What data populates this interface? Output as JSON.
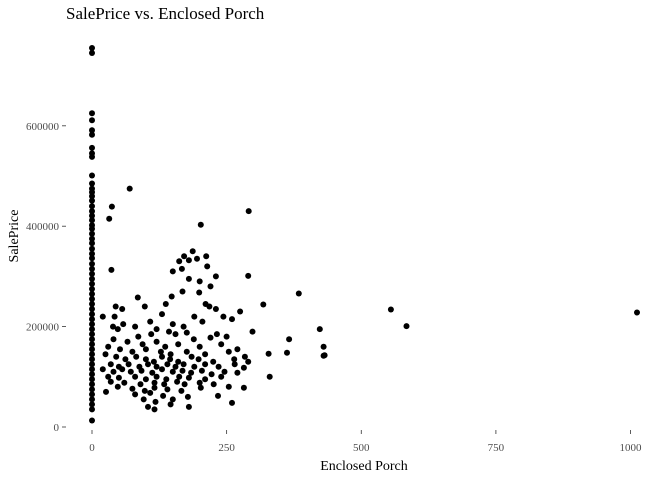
{
  "chart_data": {
    "type": "scatter",
    "title": "SalePrice vs. Enclosed Porch",
    "xlabel": "Enclosed Porch",
    "ylabel": "SalePrice",
    "xlim": [
      0,
      1012
    ],
    "ylim": [
      0,
      755000
    ],
    "x_ticks": [
      {
        "value": 0,
        "label": "0"
      },
      {
        "value": 250,
        "label": "250"
      },
      {
        "value": 500,
        "label": "500"
      },
      {
        "value": 750,
        "label": "750"
      },
      {
        "value": 1000,
        "label": "1000"
      }
    ],
    "y_ticks": [
      {
        "value": 0,
        "label": "0"
      },
      {
        "value": 200000,
        "label": "200000"
      },
      {
        "value": 400000,
        "label": "400000"
      },
      {
        "value": 600000,
        "label": "600000"
      }
    ],
    "grid": false,
    "point_color": "#000000",
    "points": [
      [
        0,
        755000
      ],
      [
        0,
        745000
      ],
      [
        0,
        625000
      ],
      [
        0,
        611000
      ],
      [
        0,
        591000
      ],
      [
        0,
        582000
      ],
      [
        0,
        556000
      ],
      [
        0,
        545000
      ],
      [
        0,
        538000
      ],
      [
        0,
        501000
      ],
      [
        0,
        485000
      ],
      [
        0,
        475000
      ],
      [
        0,
        468000
      ],
      [
        0,
        460000
      ],
      [
        0,
        451000
      ],
      [
        0,
        440000
      ],
      [
        0,
        430000
      ],
      [
        0,
        421000
      ],
      [
        0,
        412000
      ],
      [
        0,
        402000
      ],
      [
        0,
        395000
      ],
      [
        0,
        385000
      ],
      [
        0,
        375000
      ],
      [
        0,
        366000
      ],
      [
        0,
        355000
      ],
      [
        0,
        345000
      ],
      [
        0,
        336000
      ],
      [
        0,
        325000
      ],
      [
        0,
        315000
      ],
      [
        0,
        305000
      ],
      [
        0,
        295000
      ],
      [
        0,
        285000
      ],
      [
        0,
        275000
      ],
      [
        0,
        265000
      ],
      [
        0,
        255000
      ],
      [
        0,
        245000
      ],
      [
        0,
        235000
      ],
      [
        0,
        225000
      ],
      [
        0,
        215000
      ],
      [
        0,
        205000
      ],
      [
        0,
        195000
      ],
      [
        0,
        185000
      ],
      [
        0,
        175000
      ],
      [
        0,
        165000
      ],
      [
        0,
        155000
      ],
      [
        0,
        145000
      ],
      [
        0,
        135000
      ],
      [
        0,
        125000
      ],
      [
        0,
        115000
      ],
      [
        0,
        105000
      ],
      [
        0,
        95000
      ],
      [
        0,
        85000
      ],
      [
        0,
        75000
      ],
      [
        0,
        65000
      ],
      [
        0,
        55000
      ],
      [
        0,
        45000
      ],
      [
        0,
        35000
      ],
      [
        0,
        13000
      ],
      [
        70,
        475000
      ],
      [
        37,
        439000
      ],
      [
        32,
        415000
      ],
      [
        36,
        313000
      ],
      [
        202,
        403000
      ],
      [
        291,
        430000
      ],
      [
        187,
        350000
      ],
      [
        171,
        340000
      ],
      [
        212,
        340000
      ],
      [
        195,
        335000
      ],
      [
        162,
        330000
      ],
      [
        180,
        332000
      ],
      [
        214,
        320000
      ],
      [
        150,
        310000
      ],
      [
        167,
        315000
      ],
      [
        290,
        301000
      ],
      [
        230,
        300000
      ],
      [
        180,
        295000
      ],
      [
        200,
        290000
      ],
      [
        220,
        280000
      ],
      [
        168,
        270000
      ],
      [
        199,
        268000
      ],
      [
        384,
        266000
      ],
      [
        85,
        258000
      ],
      [
        148,
        260000
      ],
      [
        137,
        245000
      ],
      [
        211,
        245000
      ],
      [
        318,
        244000
      ],
      [
        44,
        240000
      ],
      [
        56,
        235000
      ],
      [
        98,
        240000
      ],
      [
        218,
        240000
      ],
      [
        230,
        235000
      ],
      [
        555,
        234000
      ],
      [
        275,
        230000
      ],
      [
        1012,
        228000
      ],
      [
        20,
        220000
      ],
      [
        42,
        220000
      ],
      [
        130,
        225000
      ],
      [
        190,
        220000
      ],
      [
        244,
        220000
      ],
      [
        260,
        215000
      ],
      [
        108,
        210000
      ],
      [
        58,
        205000
      ],
      [
        80,
        200000
      ],
      [
        150,
        205000
      ],
      [
        170,
        200000
      ],
      [
        205,
        210000
      ],
      [
        584,
        201000
      ],
      [
        423,
        195000
      ],
      [
        39,
        200000
      ],
      [
        48,
        195000
      ],
      [
        120,
        195000
      ],
      [
        143,
        190000
      ],
      [
        176,
        188000
      ],
      [
        232,
        185000
      ],
      [
        298,
        190000
      ],
      [
        86,
        180000
      ],
      [
        110,
        185000
      ],
      [
        155,
        185000
      ],
      [
        189,
        175000
      ],
      [
        220,
        178000
      ],
      [
        250,
        180000
      ],
      [
        366,
        175000
      ],
      [
        40,
        175000
      ],
      [
        66,
        170000
      ],
      [
        94,
        165000
      ],
      [
        120,
        170000
      ],
      [
        136,
        160000
      ],
      [
        160,
        165000
      ],
      [
        200,
        160000
      ],
      [
        240,
        165000
      ],
      [
        270,
        155000
      ],
      [
        30,
        160000
      ],
      [
        52,
        155000
      ],
      [
        75,
        150000
      ],
      [
        100,
        155000
      ],
      [
        128,
        150000
      ],
      [
        146,
        145000
      ],
      [
        176,
        150000
      ],
      [
        210,
        145000
      ],
      [
        254,
        150000
      ],
      [
        284,
        140000
      ],
      [
        362,
        148000
      ],
      [
        328,
        146000
      ],
      [
        432,
        143000
      ],
      [
        25,
        145000
      ],
      [
        45,
        140000
      ],
      [
        62,
        135000
      ],
      [
        82,
        140000
      ],
      [
        100,
        135000
      ],
      [
        115,
        130000
      ],
      [
        130,
        140000
      ],
      [
        145,
        135000
      ],
      [
        160,
        130000
      ],
      [
        185,
        140000
      ],
      [
        198,
        135000
      ],
      [
        225,
        130000
      ],
      [
        264,
        135000
      ],
      [
        290,
        130000
      ],
      [
        35,
        125000
      ],
      [
        50,
        120000
      ],
      [
        68,
        125000
      ],
      [
        88,
        120000
      ],
      [
        104,
        125000
      ],
      [
        120,
        120000
      ],
      [
        140,
        125000
      ],
      [
        155,
        120000
      ],
      [
        170,
        125000
      ],
      [
        190,
        120000
      ],
      [
        210,
        125000
      ],
      [
        235,
        120000
      ],
      [
        265,
        125000
      ],
      [
        282,
        118000
      ],
      [
        20,
        115000
      ],
      [
        40,
        110000
      ],
      [
        56,
        115000
      ],
      [
        72,
        110000
      ],
      [
        92,
        112000
      ],
      [
        112,
        108000
      ],
      [
        130,
        115000
      ],
      [
        150,
        110000
      ],
      [
        168,
        112000
      ],
      [
        184,
        108000
      ],
      [
        204,
        112000
      ],
      [
        222,
        105000
      ],
      [
        246,
        110000
      ],
      [
        270,
        108000
      ],
      [
        30,
        100000
      ],
      [
        50,
        98000
      ],
      [
        80,
        100000
      ],
      [
        100,
        95000
      ],
      [
        120,
        100000
      ],
      [
        138,
        95000
      ],
      [
        162,
        100000
      ],
      [
        180,
        98000
      ],
      [
        210,
        95000
      ],
      [
        240,
        100000
      ],
      [
        330,
        100000
      ],
      [
        35,
        90000
      ],
      [
        60,
        88000
      ],
      [
        90,
        85000
      ],
      [
        116,
        88000
      ],
      [
        134,
        85000
      ],
      [
        158,
        90000
      ],
      [
        172,
        85000
      ],
      [
        200,
        88000
      ],
      [
        226,
        85000
      ],
      [
        254,
        80000
      ],
      [
        282,
        78000
      ],
      [
        48,
        80000
      ],
      [
        75,
        76000
      ],
      [
        98,
        72000
      ],
      [
        116,
        78000
      ],
      [
        140,
        75000
      ],
      [
        166,
        72000
      ],
      [
        202,
        78000
      ],
      [
        26,
        70000
      ],
      [
        80,
        65000
      ],
      [
        108,
        68000
      ],
      [
        132,
        62000
      ],
      [
        150,
        55000
      ],
      [
        178,
        60000
      ],
      [
        234,
        62000
      ],
      [
        96,
        55000
      ],
      [
        118,
        50000
      ],
      [
        146,
        45000
      ],
      [
        260,
        48000
      ],
      [
        104,
        40000
      ],
      [
        116,
        35000
      ],
      [
        180,
        40000
      ],
      [
        430,
        160000
      ],
      [
        430,
        142000
      ]
    ]
  }
}
